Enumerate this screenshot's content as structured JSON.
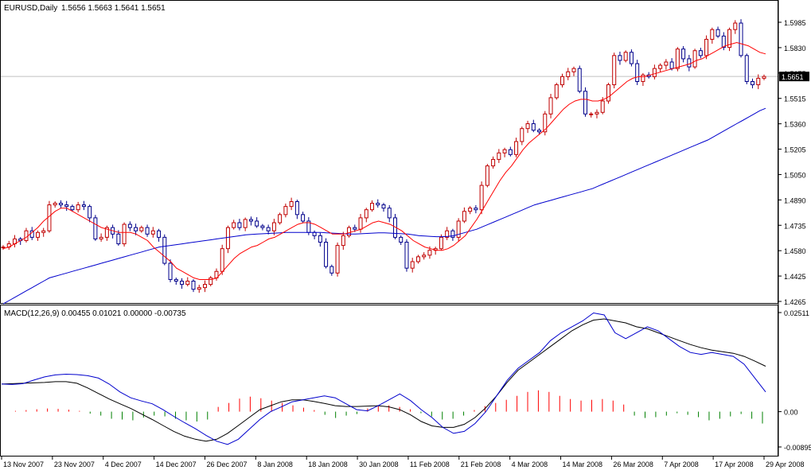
{
  "header": {
    "symbol_label": "EURUSD,Daily",
    "ohlc_label": "1.5656 1.5663 1.5641 1.5651",
    "macd_label": "MACD(12,26,9) 0.00455 0.01021 0.00000 -0.00735"
  },
  "price_axis": {
    "ticks": [
      "1.5985",
      "1.5830",
      "1.5675",
      "1.5515",
      "1.5360",
      "1.5205",
      "1.5050",
      "1.4890",
      "1.4735",
      "1.4580",
      "1.4425",
      "1.4265"
    ],
    "current_price_label": "1.5651"
  },
  "macd_axis": {
    "ticks": [
      "0.02511",
      "0.00",
      "-0.00895"
    ]
  },
  "time_axis": {
    "labels": [
      "13 Nov 2007",
      "23 Nov 2007",
      "4 Dec 2007",
      "14 Dec 2007",
      "26 Dec 2007",
      "8 Jan 2008",
      "18 Jan 2008",
      "30 Jan 2008",
      "11 Feb 2008",
      "21 Feb 2008",
      "4 Mar 2008",
      "14 Mar 2008",
      "26 Mar 2008",
      "7 Apr 2008",
      "17 Apr 2008",
      "29 Apr 2008"
    ]
  },
  "chart_data": {
    "type": "candlestick",
    "symbol": "EURUSD",
    "timeframe": "Daily",
    "colors": {
      "up": "#c00000",
      "down": "#00008b",
      "ma_fast": "#ff0000",
      "ma_slow": "#0000cd",
      "macd_line": "#0000cd",
      "signal_line": "#000000",
      "hist_pos": "#ff0000",
      "hist_neg": "#008000",
      "current_price_line": "#c0c0c0"
    },
    "price_range": [
      1.4265,
      1.5985
    ],
    "current_price": 1.5651,
    "candles_close": [
      1.46,
      1.462,
      1.465,
      1.464,
      1.47,
      1.466,
      1.469,
      1.47,
      1.486,
      1.487,
      1.486,
      1.485,
      1.483,
      1.486,
      1.485,
      1.478,
      1.465,
      1.466,
      1.472,
      1.468,
      1.462,
      1.474,
      1.472,
      1.47,
      1.472,
      1.468,
      1.47,
      1.466,
      1.45,
      1.44,
      1.439,
      1.437,
      1.439,
      1.434,
      1.435,
      1.437,
      1.441,
      1.445,
      1.459,
      1.472,
      1.475,
      1.472,
      1.477,
      1.476,
      1.473,
      1.472,
      1.47,
      1.475,
      1.48,
      1.485,
      1.488,
      1.48,
      1.476,
      1.469,
      1.467,
      1.463,
      1.448,
      1.444,
      1.461,
      1.467,
      1.472,
      1.471,
      1.478,
      1.483,
      1.487,
      1.486,
      1.484,
      1.478,
      1.466,
      1.463,
      1.447,
      1.451,
      1.454,
      1.455,
      1.458,
      1.459,
      1.466,
      1.47,
      1.466,
      1.476,
      1.482,
      1.484,
      1.483,
      1.498,
      1.51,
      1.514,
      1.518,
      1.52,
      1.517,
      1.525,
      1.533,
      1.536,
      1.532,
      1.531,
      1.542,
      1.552,
      1.56,
      1.565,
      1.568,
      1.57,
      1.556,
      1.542,
      1.542,
      1.543,
      1.55,
      1.56,
      1.578,
      1.575,
      1.58,
      1.573,
      1.562,
      1.566,
      1.565,
      1.57,
      1.572,
      1.574,
      1.57,
      1.582,
      1.576,
      1.571,
      1.581,
      1.578,
      1.588,
      1.594,
      1.59,
      1.583,
      1.594,
      1.598,
      1.578,
      1.562,
      1.56,
      1.564,
      1.5651
    ],
    "ma_fast": [
      1.459,
      1.46,
      1.462,
      1.464,
      1.466,
      1.469,
      1.472,
      1.476,
      1.479,
      1.482,
      1.484,
      1.484,
      1.482,
      1.48,
      1.478,
      1.476,
      1.474,
      1.472,
      1.471,
      1.47,
      1.469,
      1.469,
      1.469,
      1.468,
      1.466,
      1.464,
      1.46,
      1.457,
      1.454,
      1.451,
      1.447,
      1.445,
      1.443,
      1.441,
      1.44,
      1.44,
      1.44,
      1.441,
      1.445,
      1.449,
      1.453,
      1.456,
      1.458,
      1.46,
      1.461,
      1.463,
      1.465,
      1.466,
      1.468,
      1.47,
      1.472,
      1.474,
      1.475,
      1.475,
      1.474,
      1.472,
      1.47,
      1.468,
      1.468,
      1.468,
      1.469,
      1.47,
      1.471,
      1.473,
      1.475,
      1.476,
      1.475,
      1.474,
      1.472,
      1.47,
      1.467,
      1.464,
      1.462,
      1.46,
      1.459,
      1.458,
      1.458,
      1.459,
      1.461,
      1.464,
      1.467,
      1.472,
      1.477,
      1.483,
      1.489,
      1.495,
      1.501,
      1.506,
      1.51,
      1.515,
      1.52,
      1.524,
      1.527,
      1.53,
      1.533,
      1.537,
      1.541,
      1.545,
      1.548,
      1.55,
      1.551,
      1.551,
      1.55,
      1.55,
      1.551,
      1.553,
      1.556,
      1.559,
      1.562,
      1.564,
      1.565,
      1.565,
      1.566,
      1.567,
      1.568,
      1.569,
      1.57,
      1.571,
      1.572,
      1.573,
      1.575,
      1.576,
      1.578,
      1.58,
      1.582,
      1.584,
      1.585,
      1.586,
      1.585,
      1.584,
      1.582,
      1.58,
      1.579
    ],
    "ma_slow": [
      1.425,
      1.427,
      1.429,
      1.431,
      1.433,
      1.435,
      1.437,
      1.439,
      1.441,
      1.442,
      1.443,
      1.444,
      1.445,
      1.446,
      1.447,
      1.448,
      1.449,
      1.45,
      1.451,
      1.452,
      1.453,
      1.454,
      1.455,
      1.456,
      1.457,
      1.458,
      1.459,
      1.46,
      1.4605,
      1.461,
      1.4615,
      1.462,
      1.4625,
      1.463,
      1.4635,
      1.464,
      1.4645,
      1.465,
      1.4655,
      1.466,
      1.4665,
      1.467,
      1.4675,
      1.4678,
      1.468,
      1.4682,
      1.4684,
      1.4686,
      1.4688,
      1.469,
      1.469,
      1.469,
      1.469,
      1.469,
      1.469,
      1.469,
      1.4688,
      1.4686,
      1.4684,
      1.4682,
      1.468,
      1.468,
      1.4682,
      1.4684,
      1.4686,
      1.4688,
      1.4688,
      1.4686,
      1.4684,
      1.4682,
      1.468,
      1.4675,
      1.467,
      1.4668,
      1.4666,
      1.4664,
      1.4664,
      1.4666,
      1.467,
      1.468,
      1.469,
      1.47,
      1.471,
      1.4725,
      1.474,
      1.4755,
      1.477,
      1.4785,
      1.48,
      1.4815,
      1.483,
      1.4845,
      1.486,
      1.487,
      1.488,
      1.489,
      1.49,
      1.491,
      1.492,
      1.493,
      1.494,
      1.495,
      1.496,
      1.4975,
      1.499,
      1.5005,
      1.502,
      1.5035,
      1.505,
      1.5065,
      1.508,
      1.5095,
      1.511,
      1.5125,
      1.514,
      1.5155,
      1.517,
      1.5185,
      1.52,
      1.5215,
      1.523,
      1.5245,
      1.526,
      1.528,
      1.53,
      1.532,
      1.534,
      1.536,
      1.538,
      1.54,
      1.542,
      1.544,
      1.5455
    ],
    "macd_range": [
      -0.00895,
      0.02511
    ],
    "macd_line": [
      0.007,
      0.0069,
      0.0071,
      0.008,
      0.0088,
      0.0093,
      0.0095,
      0.0094,
      0.0091,
      0.0085,
      0.007,
      0.005,
      0.0035,
      0.0027,
      0.002,
      0.0005,
      -0.0012,
      -0.0028,
      -0.0043,
      -0.006,
      -0.0075,
      -0.0083,
      -0.007,
      -0.0045,
      -0.002,
      0.0,
      0.0012,
      0.0025,
      0.003,
      0.0035,
      0.004,
      0.0035,
      0.002,
      0.0005,
      0.0002,
      0.0015,
      0.003,
      0.0045,
      0.0028,
      0.0005,
      -0.0015,
      -0.004,
      -0.0055,
      -0.005,
      -0.003,
      0.0,
      0.004,
      0.008,
      0.011,
      0.013,
      0.015,
      0.018,
      0.02,
      0.0215,
      0.023,
      0.025,
      0.0245,
      0.02,
      0.0185,
      0.02,
      0.0215,
      0.0205,
      0.0185,
      0.0165,
      0.015,
      0.0145,
      0.015,
      0.0145,
      0.014,
      0.012,
      0.0085,
      0.005
    ],
    "signal_line": [
      0.007,
      0.0071,
      0.0072,
      0.0073,
      0.0074,
      0.0076,
      0.0076,
      0.0072,
      0.006,
      0.0046,
      0.0032,
      0.002,
      0.0008,
      -0.0006,
      -0.002,
      -0.0035,
      -0.005,
      -0.0062,
      -0.007,
      -0.0075,
      -0.007,
      -0.0055,
      -0.0035,
      -0.0015,
      0.0005,
      0.0015,
      0.0025,
      0.003,
      0.003,
      0.0026,
      0.0021,
      0.0015,
      0.0013,
      0.0013,
      0.0014,
      0.0015,
      0.0012,
      0.0005,
      -0.0008,
      -0.0025,
      -0.0036,
      -0.004,
      -0.004,
      -0.0032,
      -0.0015,
      0.001,
      0.004,
      0.0075,
      0.0105,
      0.0125,
      0.0145,
      0.0165,
      0.0185,
      0.0205,
      0.022,
      0.0232,
      0.0235,
      0.023,
      0.0225,
      0.0215,
      0.021,
      0.02,
      0.019,
      0.018,
      0.017,
      0.0162,
      0.0156,
      0.0152,
      0.0148,
      0.014,
      0.0128,
      0.0115
    ],
    "histogram": [
      0.0,
      0.0002,
      0.0004,
      0.0006,
      0.0008,
      0.0007,
      0.0005,
      0.0002,
      -0.0005,
      -0.001,
      -0.0018,
      -0.002,
      -0.0022,
      -0.0015,
      -0.001,
      -0.0012,
      -0.0018,
      -0.0022,
      -0.0025,
      -0.002,
      0.0012,
      0.0022,
      0.0033,
      0.0038,
      0.0034,
      0.0028,
      0.0022,
      0.0016,
      0.001,
      0.0004,
      -0.0008,
      -0.0016,
      -0.001,
      -0.0006,
      0.0008,
      0.0014,
      0.0016,
      0.0012,
      0.0006,
      -0.0004,
      -0.0012,
      -0.002,
      -0.0018,
      -0.001,
      0.0004,
      0.0014,
      0.0022,
      0.003,
      0.004,
      0.005,
      0.0054,
      0.005,
      0.004,
      0.0032,
      0.0028,
      0.003,
      0.0032,
      0.0028,
      0.0018,
      -0.001,
      -0.0016,
      -0.0014,
      -0.001,
      -0.0004,
      -0.0008,
      -0.0014,
      -0.0022,
      -0.0018,
      -0.0012,
      -0.0006,
      -0.0018,
      -0.003
    ]
  }
}
